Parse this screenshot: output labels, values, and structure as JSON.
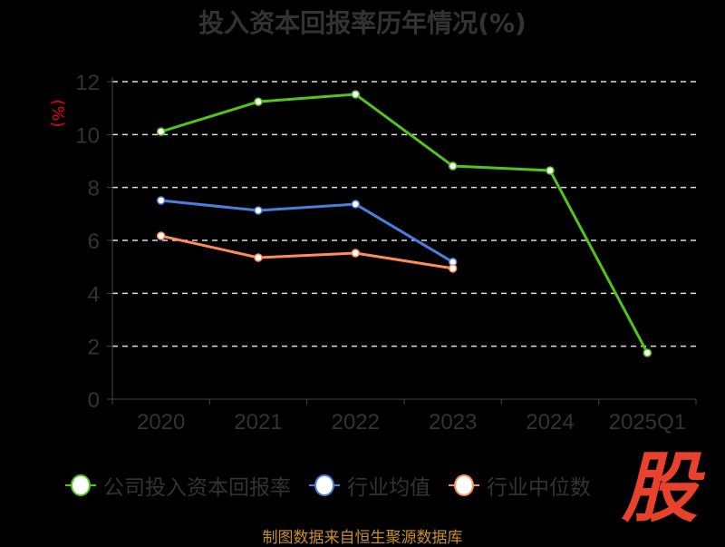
{
  "chart_data": {
    "type": "line",
    "title": "投入资本回报率历年情况(%)",
    "ylabel": "(%)",
    "xlabel": "",
    "categories": [
      "2020",
      "2021",
      "2022",
      "2023",
      "2024",
      "2025Q1"
    ],
    "ylim": [
      0,
      12
    ],
    "yticks": [
      0,
      2,
      4,
      6,
      8,
      10,
      12
    ],
    "grid": true,
    "legend_position": "bottom",
    "series": [
      {
        "name": "公司投入资本回报率",
        "color": "#52c41a",
        "values": [
          10.11,
          11.24,
          11.52,
          8.81,
          8.64,
          1.75
        ]
      },
      {
        "name": "行业均值",
        "color": "#4a7fe0",
        "values": [
          7.51,
          7.13,
          7.37,
          5.18,
          null,
          null
        ]
      },
      {
        "name": "行业中位数",
        "color": "#ff8c5a",
        "values": [
          6.17,
          5.35,
          5.52,
          4.94,
          null,
          null
        ]
      }
    ]
  },
  "source": "制图数据来自恒生聚源数据库",
  "logo_text": "股"
}
